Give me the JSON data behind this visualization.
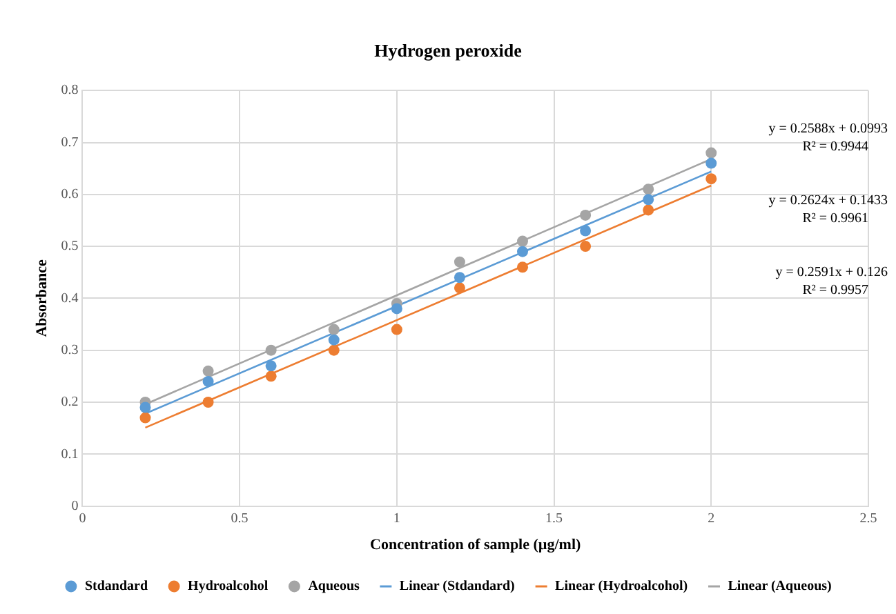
{
  "chart_data": {
    "type": "scatter",
    "title": "Hydrogen peroxide",
    "xlabel": "Concentration of sample (µg/ml)",
    "ylabel": "Absorbance",
    "x": [
      0.2,
      0.4,
      0.6,
      0.8,
      1,
      1.2,
      1.4,
      1.6,
      1.8,
      2
    ],
    "series": [
      {
        "name": "Stdandard",
        "color": "#5b9bd5",
        "values": [
          0.19,
          0.24,
          0.27,
          0.32,
          0.38,
          0.44,
          0.49,
          0.53,
          0.59,
          0.66
        ]
      },
      {
        "name": "Hydroalcohol",
        "color": "#ed7d31",
        "values": [
          0.17,
          0.2,
          0.25,
          0.3,
          0.34,
          0.42,
          0.46,
          0.5,
          0.57,
          0.63
        ]
      },
      {
        "name": "Aqueous",
        "color": "#a5a5a5",
        "values": [
          0.2,
          0.26,
          0.3,
          0.34,
          0.39,
          0.47,
          0.51,
          0.56,
          0.61,
          0.68
        ]
      },
      {
        "name": "Linear (Stdandard)",
        "type": "line",
        "marker": "none",
        "color": "#5b9bd5",
        "values": [
          0.178,
          null,
          null,
          null,
          null,
          null,
          null,
          null,
          null,
          0.644
        ]
      },
      {
        "name": "Linear (Hydroalcohol)",
        "type": "line",
        "marker": "none",
        "color": "#ed7d31",
        "values": [
          0.151,
          null,
          null,
          null,
          null,
          null,
          null,
          null,
          null,
          0.617
        ]
      },
      {
        "name": "Linear (Aqueous)",
        "type": "line",
        "marker": "none",
        "color": "#a5a5a5",
        "values": [
          0.196,
          null,
          null,
          null,
          null,
          null,
          null,
          null,
          null,
          0.668
        ]
      }
    ],
    "annotations": [
      "y = 0.2588x + 0.0993",
      "R² = 0.9944",
      "y = 0.2624x + 0.1433",
      "R² = 0.9961",
      "y = 0.2591x + 0.126",
      "R² = 0.9957"
    ],
    "xlim": [
      0,
      2.5
    ],
    "xticks": [
      0,
      0.5,
      1,
      1.5,
      2,
      2.5
    ],
    "ylim": [
      0,
      0.8
    ],
    "yticks": [
      0,
      0.1,
      0.2,
      0.3,
      0.4,
      0.5,
      0.6,
      0.7,
      0.8
    ],
    "grid": true,
    "legend": "bottom",
    "marker": "circle",
    "line_style": "solid"
  }
}
